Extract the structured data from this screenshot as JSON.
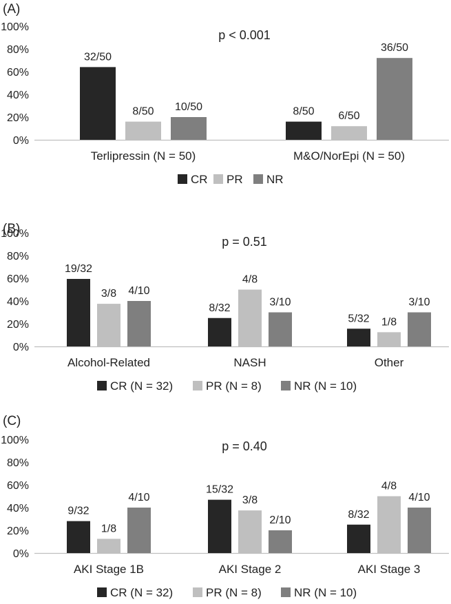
{
  "colors": {
    "CR": "#262626",
    "PR": "#bfbfbf",
    "NR": "#7f7f7f",
    "axis": "#bfbfbf",
    "text": "#222222"
  },
  "chart_data": [
    {
      "type": "bar",
      "panel_label": "(A)",
      "annotation": "p < 0.001",
      "ylim": [
        0,
        100
      ],
      "yticks": [
        "0%",
        "20%",
        "40%",
        "60%",
        "80%",
        "100%"
      ],
      "categories": [
        "Terlipressin (N = 50)",
        "M&O/NorEpi (N = 50)"
      ],
      "series": [
        {
          "key": "CR",
          "name": "CR",
          "values": [
            64,
            16
          ],
          "labels": [
            "32/50",
            "8/50"
          ]
        },
        {
          "key": "PR",
          "name": "PR",
          "values": [
            16,
            12
          ],
          "labels": [
            "8/50",
            "6/50"
          ]
        },
        {
          "key": "NR",
          "name": "NR",
          "values": [
            20,
            72
          ],
          "labels": [
            "10/50",
            "36/50"
          ]
        }
      ],
      "legend_position": "bottom"
    },
    {
      "type": "bar",
      "panel_label": "(B)",
      "annotation": "p = 0.51",
      "ylim": [
        0,
        100
      ],
      "yticks": [
        "0%",
        "20%",
        "40%",
        "60%",
        "80%",
        "100%"
      ],
      "categories": [
        "Alcohol-Related",
        "NASH",
        "Other"
      ],
      "series": [
        {
          "key": "CR",
          "name": "CR (N = 32)",
          "values": [
            59.4,
            25,
            15.6
          ],
          "labels": [
            "19/32",
            "8/32",
            "5/32"
          ]
        },
        {
          "key": "PR",
          "name": "PR (N = 8)",
          "values": [
            37.5,
            50,
            12.5
          ],
          "labels": [
            "3/8",
            "4/8",
            "1/8"
          ]
        },
        {
          "key": "NR",
          "name": "NR (N = 10)",
          "values": [
            40,
            30,
            30
          ],
          "labels": [
            "4/10",
            "3/10",
            "3/10"
          ]
        }
      ],
      "legend_position": "bottom"
    },
    {
      "type": "bar",
      "panel_label": "(C)",
      "annotation": "p = 0.40",
      "ylim": [
        0,
        100
      ],
      "yticks": [
        "0%",
        "20%",
        "40%",
        "60%",
        "80%",
        "100%"
      ],
      "categories": [
        "AKI Stage 1B",
        "AKI Stage 2",
        "AKI Stage 3"
      ],
      "series": [
        {
          "key": "CR",
          "name": "CR (N = 32)",
          "values": [
            28.1,
            46.9,
            25
          ],
          "labels": [
            "9/32",
            "15/32",
            "8/32"
          ]
        },
        {
          "key": "PR",
          "name": "PR (N = 8)",
          "values": [
            12.5,
            37.5,
            50
          ],
          "labels": [
            "1/8",
            "3/8",
            "4/8"
          ]
        },
        {
          "key": "NR",
          "name": "NR (N = 10)",
          "values": [
            40,
            20,
            40
          ],
          "labels": [
            "4/10",
            "2/10",
            "4/10"
          ]
        }
      ],
      "legend_position": "bottom"
    }
  ]
}
